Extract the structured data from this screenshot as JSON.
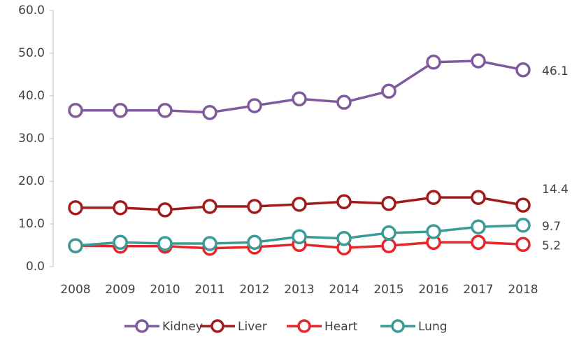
{
  "chart_data": {
    "type": "line",
    "x": [
      2008,
      2009,
      2010,
      2011,
      2012,
      2013,
      2014,
      2015,
      2016,
      2017,
      2018
    ],
    "xlim": [
      2008,
      2018
    ],
    "ylim": [
      0,
      60
    ],
    "yticks": [
      {
        "value": 0,
        "label": "0.0"
      },
      {
        "value": 10,
        "label": "10.0"
      },
      {
        "value": 20,
        "label": "20.0"
      },
      {
        "value": 30,
        "label": "30.0"
      },
      {
        "value": 40,
        "label": "40.0"
      },
      {
        "value": 50,
        "label": "50.0"
      },
      {
        "value": 60,
        "label": "60.0"
      }
    ],
    "grid": false,
    "legend": "bottom",
    "series": [
      {
        "name": "Kidney",
        "color": "#7f5a9e",
        "values": [
          36.6,
          36.6,
          36.6,
          36.1,
          37.7,
          39.3,
          38.5,
          41.1,
          47.9,
          48.2,
          46.1
        ]
      },
      {
        "name": "Liver",
        "color": "#a31a1a",
        "values": [
          13.8,
          13.8,
          13.3,
          14.1,
          14.1,
          14.6,
          15.2,
          14.8,
          16.2,
          16.2,
          14.4
        ]
      },
      {
        "name": "Heart",
        "color": "#e8262a",
        "values": [
          4.9,
          4.8,
          4.8,
          4.3,
          4.6,
          5.2,
          4.4,
          4.9,
          5.7,
          5.7,
          5.2
        ]
      },
      {
        "name": "Lung",
        "color": "#3a9b96",
        "values": [
          4.9,
          5.7,
          5.4,
          5.4,
          5.7,
          7.0,
          6.6,
          7.9,
          8.2,
          9.3,
          9.7
        ]
      }
    ]
  }
}
